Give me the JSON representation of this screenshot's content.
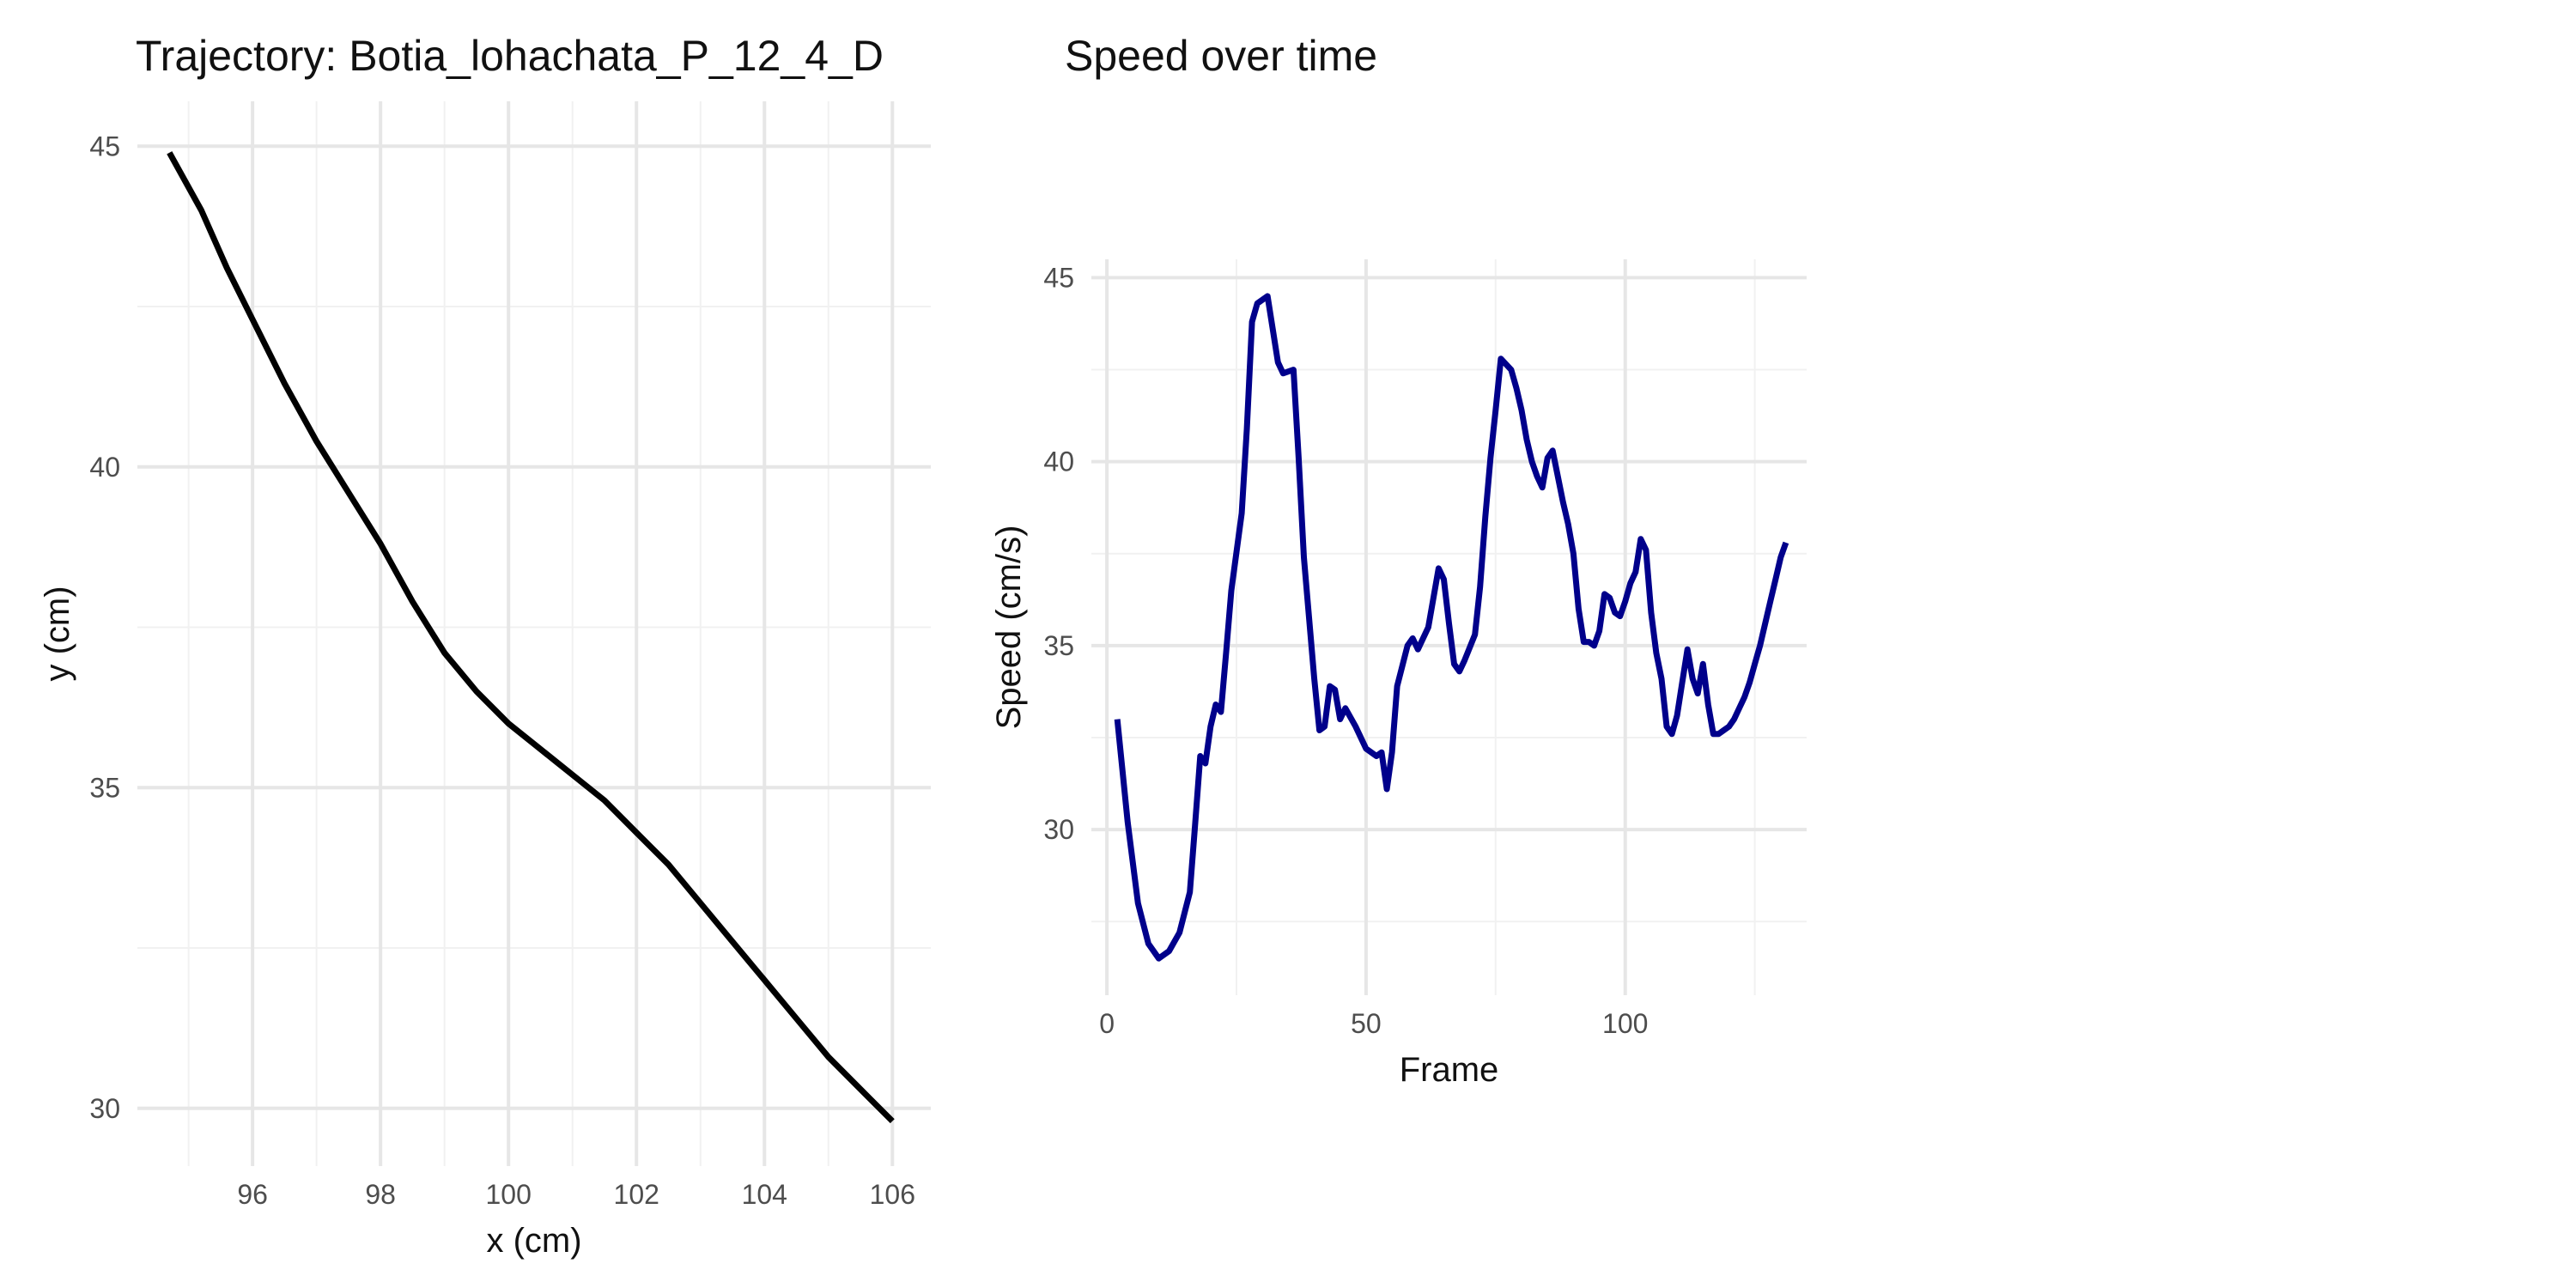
{
  "charts": {
    "trajectory": {
      "title": "Trajectory: Botia_lohachata_P_12_4_D",
      "chart_data": {
        "type": "line",
        "title": "Trajectory: Botia_lohachata_P_12_4_D",
        "xlabel": "x (cm)",
        "ylabel": "y (cm)",
        "xlim": [
          94.2,
          106.6
        ],
        "ylim": [
          29.1,
          45.7
        ],
        "xticks": [
          96,
          98,
          100,
          102,
          104,
          106
        ],
        "yticks": [
          30,
          35,
          40,
          45
        ],
        "grid": true,
        "line_color": "#000000",
        "series": [
          {
            "x": [
              94.7,
              95.2,
              95.6,
              96.0,
              96.5,
              97.0,
              97.5,
              98.0,
              98.5,
              99.0,
              99.5,
              100.0,
              100.5,
              101.0,
              101.5,
              102.0,
              102.5,
              103.0,
              103.5,
              104.0,
              104.5,
              105.0,
              105.5,
              106.0
            ],
            "y": [
              44.9,
              44.0,
              43.1,
              42.3,
              41.3,
              40.4,
              39.6,
              38.8,
              37.9,
              37.1,
              36.5,
              36.0,
              35.6,
              35.2,
              34.8,
              34.3,
              33.8,
              33.2,
              32.6,
              32.0,
              31.4,
              30.8,
              30.3,
              29.8
            ]
          }
        ]
      }
    },
    "speed": {
      "title": "Speed over time",
      "chart_data": {
        "type": "line",
        "title": "Speed over time",
        "xlabel": "Frame",
        "ylabel": "Speed (cm/s)",
        "xlim": [
          -3,
          135
        ],
        "ylim": [
          25.5,
          45.5
        ],
        "xticks": [
          0,
          50,
          100
        ],
        "yticks": [
          30,
          35,
          40,
          45
        ],
        "grid": true,
        "line_color": "#00008b",
        "series": [
          {
            "x": [
              2,
              4,
              6,
              8,
              10,
              12,
              14,
              16,
              17,
              18,
              19,
              20,
              21,
              22,
              23,
              24,
              26,
              27,
              28,
              29,
              30,
              31,
              33,
              34,
              36,
              37,
              38,
              40,
              41,
              42,
              43,
              44,
              45,
              46,
              48,
              50,
              52,
              53,
              54,
              55,
              56,
              58,
              59,
              60,
              62,
              63,
              64,
              65,
              66,
              67,
              68,
              69,
              71,
              72,
              73,
              74,
              75,
              76,
              78,
              79,
              80,
              81,
              82,
              83,
              84,
              85,
              86,
              88,
              89,
              90,
              91,
              92,
              93,
              94,
              95,
              96,
              97,
              98,
              99,
              100,
              101,
              102,
              103,
              104,
              105,
              106,
              107,
              108,
              109,
              110,
              111,
              112,
              113,
              114,
              115,
              116,
              117,
              118,
              119,
              120,
              121,
              122,
              123,
              124,
              125,
              126,
              127,
              128,
              129,
              130,
              131
            ],
            "y": [
              33.0,
              30.2,
              28.0,
              26.9,
              26.5,
              26.7,
              27.2,
              28.3,
              30.1,
              32.0,
              31.8,
              32.8,
              33.4,
              33.2,
              34.8,
              36.5,
              38.6,
              40.9,
              43.8,
              44.3,
              44.4,
              44.5,
              42.7,
              42.4,
              42.5,
              40.1,
              37.4,
              34.1,
              32.7,
              32.8,
              33.9,
              33.8,
              33.0,
              33.3,
              32.8,
              32.2,
              32.0,
              32.1,
              31.1,
              32.1,
              33.9,
              35.0,
              35.2,
              34.9,
              35.5,
              36.3,
              37.1,
              36.8,
              35.6,
              34.5,
              34.3,
              34.6,
              35.3,
              36.6,
              38.5,
              40.1,
              41.4,
              42.8,
              42.5,
              42.0,
              41.4,
              40.6,
              40.0,
              39.6,
              39.3,
              40.1,
              40.3,
              38.9,
              38.3,
              37.5,
              36.0,
              35.1,
              35.1,
              35.0,
              35.4,
              36.4,
              36.3,
              35.9,
              35.8,
              36.2,
              36.7,
              37.0,
              37.9,
              37.6,
              35.9,
              34.8,
              34.1,
              32.8,
              32.6,
              33.1,
              34.0,
              34.9,
              34.1,
              33.7,
              34.5,
              33.4,
              32.6,
              32.6,
              32.7,
              32.8,
              33.0,
              33.3,
              33.6,
              34.0,
              34.5,
              35.0,
              35.6,
              36.2,
              36.8,
              37.4,
              37.8
            ]
          }
        ]
      }
    }
  }
}
